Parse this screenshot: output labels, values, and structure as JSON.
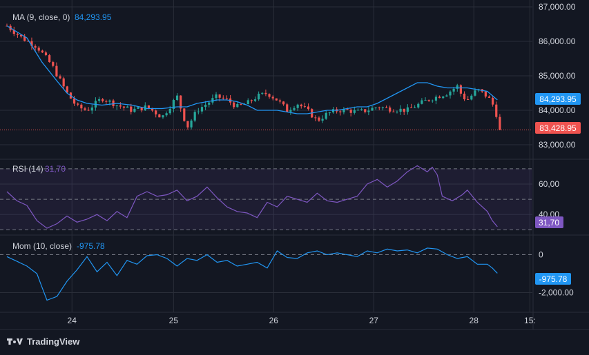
{
  "chart_data": [
    {
      "type": "candlestick",
      "pane": "price",
      "indicator_label": "MA (9, close, 0)",
      "indicator_value": "84,293.95",
      "last_price_label": "83,428.95",
      "ma_value_label": "84,293.95",
      "ylim": [
        82600,
        87000
      ],
      "yticks": [
        {
          "v": 83000,
          "label": "83,000.00"
        },
        {
          "v": 84000,
          "label": "84,000.00"
        },
        {
          "v": 85000,
          "label": "85,000.00"
        },
        {
          "v": 86000,
          "label": "86,000.00"
        },
        {
          "v": 87000,
          "label": "87,000.00"
        }
      ],
      "close_path": [
        [
          0,
          86450
        ],
        [
          3,
          86100
        ],
        [
          6,
          85850
        ],
        [
          9,
          85300
        ],
        [
          12,
          84500
        ],
        [
          14,
          84100
        ],
        [
          16,
          84000
        ],
        [
          19,
          84350
        ],
        [
          22,
          84150
        ],
        [
          25,
          84000
        ],
        [
          28,
          84100
        ],
        [
          31,
          83800
        ],
        [
          34,
          84400
        ],
        [
          36,
          83500
        ],
        [
          38,
          84000
        ],
        [
          40,
          84200
        ],
        [
          42,
          84400
        ],
        [
          44,
          84300
        ],
        [
          46,
          84100
        ],
        [
          48,
          84200
        ],
        [
          50,
          84400
        ],
        [
          52,
          84500
        ],
        [
          54,
          84300
        ],
        [
          56,
          84000
        ],
        [
          58,
          84200
        ],
        [
          60,
          84000
        ],
        [
          62,
          83700
        ],
        [
          64,
          83900
        ],
        [
          66,
          84000
        ],
        [
          68,
          84000
        ],
        [
          70,
          83950
        ],
        [
          72,
          84000
        ],
        [
          74,
          84100
        ],
        [
          76,
          84050
        ],
        [
          80,
          84000
        ],
        [
          84,
          84300
        ],
        [
          86,
          84400
        ],
        [
          88,
          84500
        ],
        [
          90,
          84700
        ],
        [
          91,
          84400
        ],
        [
          92,
          84300
        ],
        [
          94,
          84600
        ],
        [
          96,
          84400
        ],
        [
          97,
          84200
        ],
        [
          98,
          83800
        ],
        [
          98.5,
          83430
        ]
      ],
      "ma_path": [
        [
          0,
          86450
        ],
        [
          4,
          86100
        ],
        [
          7,
          85400
        ],
        [
          10,
          84850
        ],
        [
          12,
          84500
        ],
        [
          14,
          84300
        ],
        [
          16,
          84200
        ],
        [
          19,
          84150
        ],
        [
          22,
          84200
        ],
        [
          25,
          84150
        ],
        [
          28,
          84050
        ],
        [
          31,
          84050
        ],
        [
          34,
          84100
        ],
        [
          36,
          84100
        ],
        [
          38,
          84200
        ],
        [
          40,
          84250
        ],
        [
          42,
          84300
        ],
        [
          44,
          84300
        ],
        [
          46,
          84250
        ],
        [
          48,
          84150
        ],
        [
          50,
          84000
        ],
        [
          52,
          84000
        ],
        [
          54,
          84000
        ],
        [
          56,
          83950
        ],
        [
          58,
          83900
        ],
        [
          60,
          83900
        ],
        [
          62,
          83950
        ],
        [
          64,
          84000
        ],
        [
          66,
          84000
        ],
        [
          68,
          84050
        ],
        [
          70,
          84100
        ],
        [
          72,
          84100
        ],
        [
          74,
          84200
        ],
        [
          76,
          84350
        ],
        [
          78,
          84500
        ],
        [
          80,
          84650
        ],
        [
          82,
          84800
        ],
        [
          84,
          84800
        ],
        [
          86,
          84700
        ],
        [
          88,
          84650
        ],
        [
          90,
          84650
        ],
        [
          92,
          84650
        ],
        [
          94,
          84600
        ],
        [
          96,
          84550
        ],
        [
          98,
          84300
        ]
      ]
    },
    {
      "type": "line",
      "pane": "rsi",
      "indicator_label": "RSI (14)",
      "indicator_value": "31,70",
      "value_label": "31,70",
      "ylim": [
        27,
        74
      ],
      "band": [
        30,
        70
      ],
      "mid": 50,
      "yticks": [
        {
          "v": 40,
          "label": "40,00"
        },
        {
          "v": 60,
          "label": "60,00"
        }
      ],
      "series": [
        [
          0,
          55
        ],
        [
          2,
          49
        ],
        [
          4,
          46
        ],
        [
          5,
          41
        ],
        [
          6,
          36
        ],
        [
          8,
          31
        ],
        [
          10,
          34
        ],
        [
          12,
          39
        ],
        [
          14,
          35
        ],
        [
          16,
          37
        ],
        [
          18,
          40
        ],
        [
          20,
          36
        ],
        [
          22,
          42
        ],
        [
          24,
          38
        ],
        [
          26,
          52
        ],
        [
          28,
          55
        ],
        [
          30,
          52
        ],
        [
          32,
          53
        ],
        [
          34,
          56
        ],
        [
          36,
          49
        ],
        [
          38,
          52
        ],
        [
          40,
          58
        ],
        [
          42,
          51
        ],
        [
          44,
          45
        ],
        [
          46,
          42
        ],
        [
          48,
          41
        ],
        [
          50,
          38
        ],
        [
          52,
          48
        ],
        [
          54,
          45
        ],
        [
          56,
          52
        ],
        [
          58,
          50
        ],
        [
          60,
          48
        ],
        [
          62,
          54
        ],
        [
          64,
          49
        ],
        [
          66,
          48
        ],
        [
          68,
          50
        ],
        [
          70,
          52
        ],
        [
          72,
          60
        ],
        [
          74,
          63
        ],
        [
          76,
          58
        ],
        [
          78,
          62
        ],
        [
          80,
          68
        ],
        [
          82,
          72
        ],
        [
          84,
          68
        ],
        [
          85,
          71
        ],
        [
          86,
          66
        ],
        [
          87,
          52
        ],
        [
          89,
          49
        ],
        [
          91,
          53
        ],
        [
          92,
          56
        ],
        [
          94,
          48
        ],
        [
          96,
          42
        ],
        [
          97,
          36
        ],
        [
          98,
          32
        ]
      ]
    },
    {
      "type": "line",
      "pane": "momentum",
      "indicator_label": "Mom (10, close)",
      "indicator_value": "-975.78",
      "value_label": "-975.78",
      "ylim": [
        -3000,
        1000
      ],
      "zero": 0,
      "yticks": [
        {
          "v": 0,
          "label": "0"
        },
        {
          "v": -2000,
          "label": "-2,000.00"
        }
      ],
      "series": [
        [
          0,
          -100
        ],
        [
          2,
          -350
        ],
        [
          4,
          -600
        ],
        [
          6,
          -1000
        ],
        [
          7,
          -1700
        ],
        [
          8,
          -2400
        ],
        [
          10,
          -2200
        ],
        [
          12,
          -1400
        ],
        [
          14,
          -800
        ],
        [
          16,
          -100
        ],
        [
          18,
          -900
        ],
        [
          20,
          -400
        ],
        [
          22,
          -1100
        ],
        [
          24,
          -300
        ],
        [
          26,
          -500
        ],
        [
          28,
          -50
        ],
        [
          30,
          0
        ],
        [
          32,
          -200
        ],
        [
          34,
          -600
        ],
        [
          36,
          -200
        ],
        [
          38,
          -300
        ],
        [
          40,
          0
        ],
        [
          42,
          -400
        ],
        [
          44,
          -300
        ],
        [
          46,
          -600
        ],
        [
          48,
          -500
        ],
        [
          50,
          -400
        ],
        [
          52,
          -700
        ],
        [
          54,
          200
        ],
        [
          56,
          -150
        ],
        [
          58,
          -200
        ],
        [
          60,
          100
        ],
        [
          62,
          200
        ],
        [
          64,
          0
        ],
        [
          66,
          100
        ],
        [
          68,
          0
        ],
        [
          70,
          -100
        ],
        [
          72,
          200
        ],
        [
          74,
          100
        ],
        [
          76,
          300
        ],
        [
          78,
          200
        ],
        [
          80,
          250
        ],
        [
          82,
          100
        ],
        [
          84,
          350
        ],
        [
          86,
          300
        ],
        [
          88,
          0
        ],
        [
          90,
          -200
        ],
        [
          92,
          -100
        ],
        [
          94,
          -500
        ],
        [
          96,
          -500
        ],
        [
          97,
          -700
        ],
        [
          98,
          -980
        ]
      ]
    },
    {
      "type": "axis",
      "pane": "time",
      "xlim": [
        0,
        105
      ],
      "xticks": [
        {
          "v": 13,
          "label": "24"
        },
        {
          "v": 33.3,
          "label": "25"
        },
        {
          "v": 53.3,
          "label": "26"
        },
        {
          "v": 73.3,
          "label": "27"
        },
        {
          "v": 93.3,
          "label": "28"
        },
        {
          "v": 104.5,
          "label": "15:"
        }
      ]
    }
  ],
  "brand": "TradingView",
  "colors": {
    "background": "#131722",
    "grid": "#2a2e39",
    "up": "#26a69a",
    "down": "#ef5350",
    "ma": "#2196f3",
    "rsi": "#7e57c2",
    "mom": "#2196f3",
    "text": "#b2b5be"
  }
}
